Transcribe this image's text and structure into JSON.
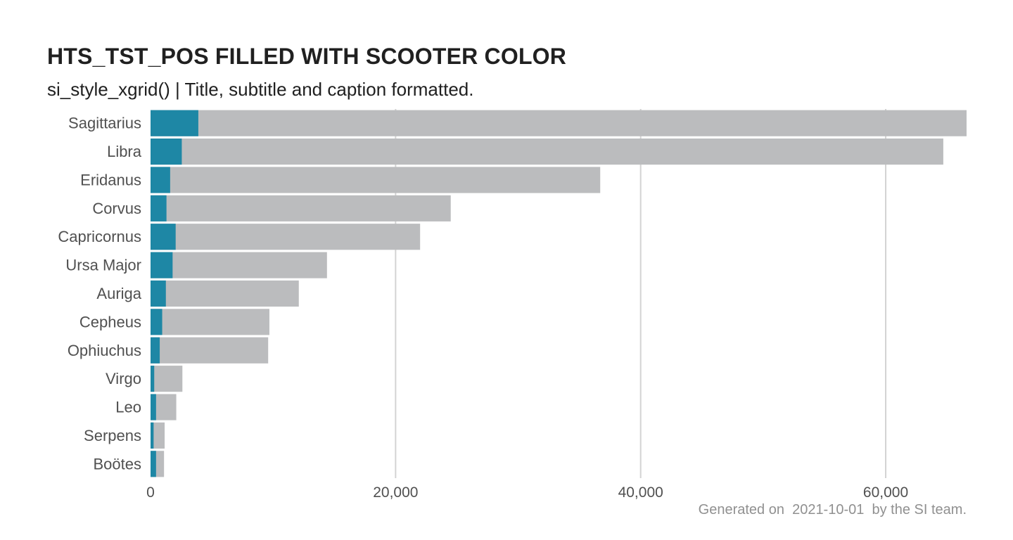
{
  "chart_data": {
    "type": "bar",
    "orientation": "horizontal",
    "title": "HTS_TST_POS FILLED WITH SCOOTER COLOR",
    "subtitle": "si_style_xgrid() | Title, subtitle and caption formatted.",
    "caption": "Generated on  2021-10-01  by the SI team.",
    "categories": [
      "Sagittarius",
      "Libra",
      "Eridanus",
      "Corvus",
      "Capricornus",
      "Ursa Major",
      "Auriga",
      "Cepheus",
      "Ophiuchus",
      "Virgo",
      "Leo",
      "Serpens",
      "Boötes"
    ],
    "series": [
      {
        "values": [
          66600,
          64700,
          36700,
          24500,
          22000,
          14400,
          12100,
          9700,
          9600,
          2600,
          2100,
          1150,
          1100
        ],
        "color": "#bbbcbe"
      },
      {
        "values": [
          3900,
          2550,
          1600,
          1300,
          2050,
          1800,
          1250,
          950,
          750,
          300,
          450,
          250,
          450
        ],
        "color": "#1e87a5"
      }
    ],
    "xlim": [
      0,
      66600
    ],
    "xticks": [
      0,
      20000,
      40000,
      60000
    ],
    "xtick_labels": [
      "0",
      "20,000",
      "40,000",
      "60,000"
    ],
    "xgrid": true,
    "ygrid": false,
    "legend": "none"
  }
}
